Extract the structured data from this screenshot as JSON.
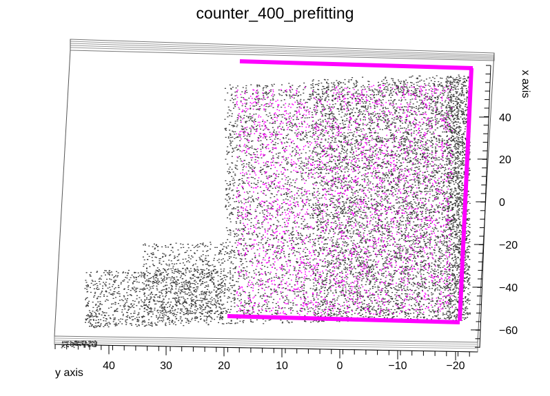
{
  "chart_data": {
    "type": "scatter",
    "title": "counter_400_prefitting",
    "xlabel": "x axis",
    "ylabel": "y axis",
    "x_axis": {
      "label": "x axis",
      "ticks": [
        40,
        20,
        0,
        -20,
        -40,
        -60
      ],
      "tick_labels": [
        "40",
        "20",
        "0",
        "−20",
        "−40",
        "−60"
      ],
      "range": [
        -70,
        62
      ]
    },
    "y_axis": {
      "label": "y axis",
      "ticks": [
        40,
        30,
        20,
        10,
        0,
        -10,
        -20
      ],
      "tick_labels": [
        "40",
        "30",
        "20",
        "10",
        "0",
        "−10",
        "−20"
      ],
      "range": [
        -23,
        54
      ]
    },
    "grid": false,
    "legend": "none",
    "series": [
      {
        "color": "#3a3a3a",
        "marker": "point",
        "description_regions": [
          {
            "y_range": [
              -22,
              20
            ],
            "x_range": [
              -55,
              57
            ]
          },
          {
            "y_range": [
              20,
              45
            ],
            "x_range": [
              -57,
              -15
            ]
          }
        ]
      },
      {
        "color": "#ff00ff",
        "marker": "point",
        "description_regions": [
          {
            "y_range": [
              -20,
              20
            ],
            "x_range": [
              -56,
              56
            ]
          }
        ],
        "frame_lines": [
          {
            "from": [
              18,
              56
            ],
            "to": [
              -20,
              53
            ]
          },
          {
            "from": [
              20,
              -53
            ],
            "to": [
              -19,
              -56
            ]
          },
          {
            "from": [
              -20,
              53
            ],
            "to": [
              -19,
              -56
            ]
          }
        ]
      }
    ]
  }
}
